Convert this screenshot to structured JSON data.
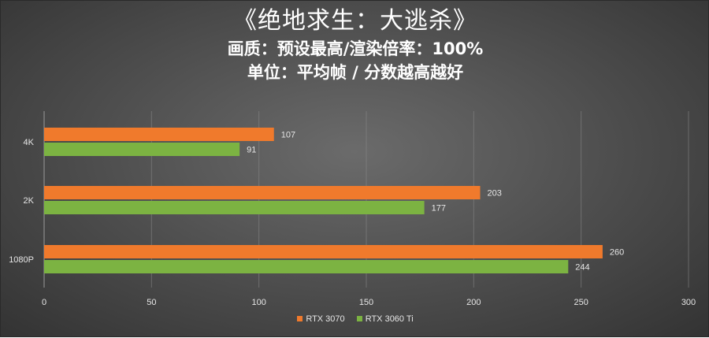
{
  "header": {
    "title": "《绝地求生：大逃杀》",
    "subtitle_quality": "画质：预设最高/渲染倍率：100%",
    "subtitle_unit": "单位：平均帧 / 分数越高越好"
  },
  "colors": {
    "rtx3070": "#f07a2c",
    "rtx3060ti": "#7cb342",
    "label_text": "#e6e6e6",
    "gridline": "#8a8a8a"
  },
  "chart_data": {
    "type": "bar",
    "orientation": "horizontal",
    "title": "《绝地求生：大逃杀》",
    "categories": [
      "4K",
      "2K",
      "1080P"
    ],
    "series": [
      {
        "name": "RTX 3070",
        "values": [
          107,
          203,
          260
        ],
        "color": "#f07a2c"
      },
      {
        "name": "RTX 3060 Ti",
        "values": [
          91,
          177,
          244
        ],
        "color": "#7cb342"
      }
    ],
    "xlim": [
      0,
      300
    ],
    "xticks": [
      0,
      50,
      100,
      150,
      200,
      250,
      300
    ],
    "grid": "vertical",
    "legend": "bottom-center",
    "xlabel": "",
    "ylabel": ""
  }
}
